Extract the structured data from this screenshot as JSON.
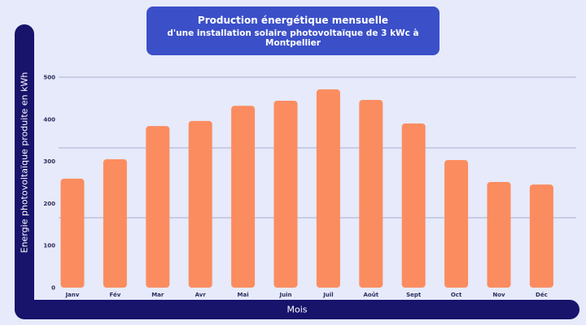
{
  "chart_data": {
    "type": "bar",
    "title": "Production énergétique mensuelle",
    "subtitle": "d'une installation solaire photovoltaïque de 3 kWc à Montpellier",
    "xlabel": "Mois",
    "ylabel": "Energie photovoltaïque produite en kWh",
    "categories": [
      "Janv",
      "Fév",
      "Mar",
      "Avr",
      "Mai",
      "Juin",
      "Juil",
      "Août",
      "Sept",
      "Oct",
      "Nov",
      "Déc"
    ],
    "values": [
      259,
      305,
      384,
      396,
      432,
      444,
      471,
      446,
      390,
      303,
      251,
      245
    ],
    "ylim": [
      0,
      500
    ],
    "yticks": [
      "0",
      "100",
      "200",
      "300",
      "400",
      "500"
    ],
    "grid": true,
    "colors": {
      "bar": "#fb8c5f",
      "frame": "#18136b",
      "title_bg": "#3b4fc8",
      "background": "#e6eafa"
    }
  }
}
